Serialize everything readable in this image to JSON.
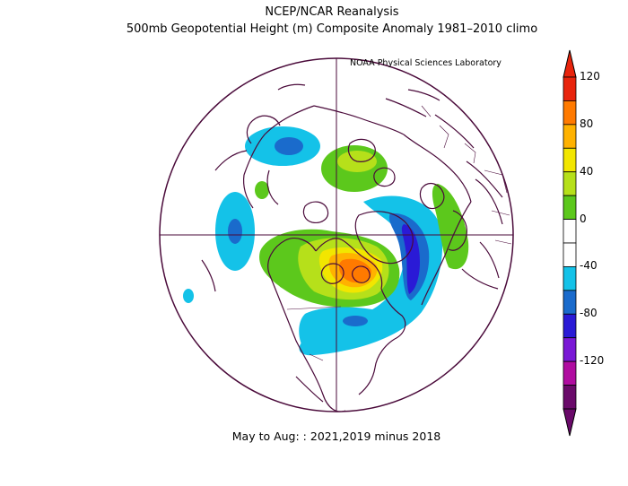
{
  "title_line1": "NCEP/NCAR Reanalysis",
  "title_line2": "500mb Geopotential Height (m) Composite Anomaly 1981–2010 climo",
  "credit": "NOAA Physical Sciences Laboratory",
  "caption": "May to Aug: : 2021,2019 minus 2018",
  "colorbar": {
    "ticks": [
      "120",
      "80",
      "40",
      "0",
      "-40",
      "-80",
      "-120"
    ],
    "colors": [
      "#e8240c",
      "#ff7a00",
      "#ffb200",
      "#f2e600",
      "#b6e01a",
      "#5cc81c",
      "#ffffff",
      "#ffffff",
      "#14c2e8",
      "#1a6bcc",
      "#2a1ad6",
      "#7a18d6",
      "#b00ca0",
      "#6a0a6a"
    ]
  },
  "map_colors": {
    "coast": "#4a0a3a",
    "neg_light": "#14c2e8",
    "neg_mid": "#1a6bcc",
    "neg_strong": "#2a1ad6",
    "pos_light": "#5cc81c",
    "pos_mid": "#b6e01a",
    "pos_yellow": "#f2e600",
    "pos_orange": "#ffb200",
    "pos_strong": "#ff7a00"
  }
}
